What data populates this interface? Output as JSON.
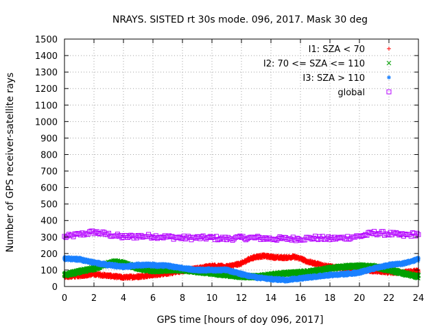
{
  "chart_data": {
    "type": "scatter",
    "title": "NRAYS. SISTED rt 30s mode. 096, 2017. Mask 30 deg",
    "xlabel": "GPS time [hours of doy 096, 2017]",
    "ylabel": "Number of GPS receiver-satellite rays",
    "xlim": [
      0,
      24
    ],
    "ylim": [
      0,
      1500
    ],
    "xticks": [
      0,
      2,
      4,
      6,
      8,
      10,
      12,
      14,
      16,
      18,
      20,
      22,
      24
    ],
    "yticks": [
      0,
      100,
      200,
      300,
      400,
      500,
      600,
      700,
      800,
      900,
      1000,
      1100,
      1200,
      1300,
      1400,
      1500
    ],
    "grid": true,
    "legend_position": "top-right",
    "series": [
      {
        "name": "I1: SZA < 70",
        "marker": "+",
        "color": "#ff0000",
        "x": [
          0,
          1,
          2,
          3,
          4,
          5,
          6,
          7,
          8,
          9,
          10,
          11,
          12,
          12.5,
          13,
          13.5,
          14,
          14.5,
          15,
          15.5,
          16,
          16.5,
          17,
          18,
          19,
          20,
          21,
          22,
          23,
          24
        ],
        "values": [
          60,
          65,
          75,
          65,
          55,
          60,
          70,
          80,
          95,
          110,
          125,
          120,
          140,
          165,
          180,
          185,
          180,
          175,
          175,
          180,
          170,
          150,
          140,
          120,
          110,
          100,
          95,
          85,
          85,
          95
        ]
      },
      {
        "name": "I2: 70 <= SZA <= 110",
        "marker": "x",
        "color": "#00a000",
        "x": [
          0,
          1,
          2,
          3,
          3.5,
          4,
          5,
          6,
          7,
          8,
          9,
          10,
          11,
          12,
          13,
          14,
          15,
          16,
          17,
          18,
          19,
          20,
          21,
          22,
          23,
          24
        ],
        "values": [
          70,
          90,
          110,
          140,
          150,
          140,
          110,
          95,
          100,
          100,
          90,
          80,
          70,
          60,
          60,
          70,
          80,
          85,
          95,
          110,
          120,
          125,
          120,
          100,
          80,
          60
        ]
      },
      {
        "name": "I3: SZA > 110",
        "marker": "*",
        "color": "#1a80ff",
        "x": [
          0,
          1,
          2,
          3,
          4,
          5,
          6,
          7,
          8,
          9,
          10,
          11,
          12,
          13,
          14,
          15,
          16,
          17,
          18,
          19,
          20,
          21,
          22,
          23,
          24
        ],
        "values": [
          170,
          165,
          145,
          130,
          120,
          130,
          130,
          125,
          110,
          100,
          100,
          100,
          75,
          55,
          45,
          40,
          50,
          60,
          70,
          75,
          85,
          110,
          130,
          140,
          165
        ]
      },
      {
        "name": "global",
        "marker": "square",
        "color": "#b400ff",
        "x": [
          0,
          1,
          2,
          3,
          4,
          5,
          6,
          7,
          8,
          9,
          10,
          11,
          12,
          13,
          14,
          15,
          16,
          17,
          18,
          19,
          20,
          21,
          22,
          23,
          24
        ],
        "values": [
          300,
          315,
          330,
          315,
          300,
          305,
          305,
          300,
          295,
          295,
          295,
          290,
          295,
          295,
          290,
          290,
          290,
          295,
          290,
          295,
          305,
          325,
          320,
          310,
          320
        ]
      }
    ]
  }
}
